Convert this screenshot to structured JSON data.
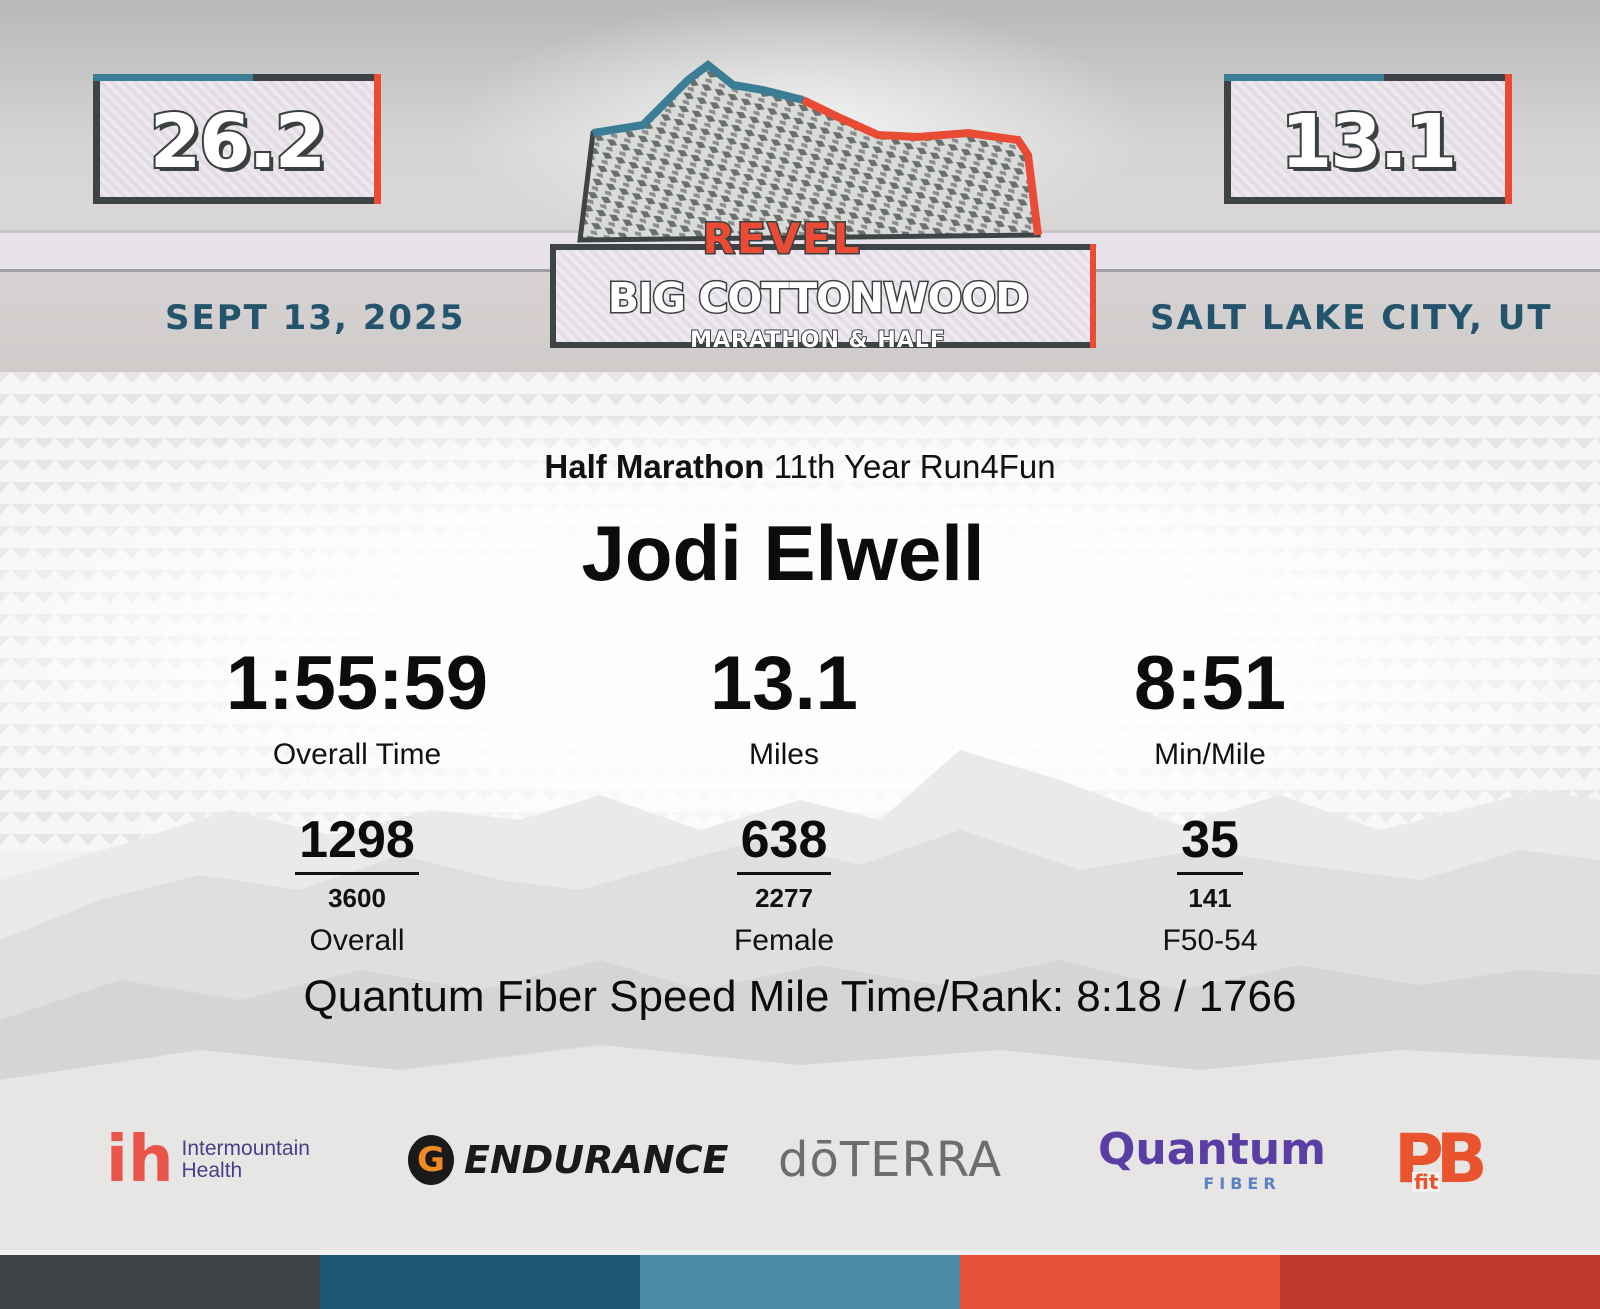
{
  "header": {
    "left_distance": "26.2",
    "right_distance": "13.1",
    "date": "SEPT 13, 2025",
    "location": "SALT LAKE CITY, UT",
    "logo": {
      "brand": "REVEL",
      "name": "BIG COTTONWOOD",
      "subtitle": "MARATHON & HALF"
    }
  },
  "result": {
    "race_type": "Half Marathon",
    "team": "11th Year Run4Fun",
    "runner_name": "Jodi Elwell",
    "stats": [
      {
        "value": "1:55:59",
        "label": "Overall Time"
      },
      {
        "value": "13.1",
        "label": "Miles"
      },
      {
        "value": "8:51",
        "label": "Min/Mile"
      }
    ],
    "ranks": [
      {
        "place": "1298",
        "total": "3600",
        "label": "Overall"
      },
      {
        "place": "638",
        "total": "2277",
        "label": "Female"
      },
      {
        "place": "35",
        "total": "141",
        "label": "F50-54"
      }
    ],
    "speed_mile": "Quantum Fiber Speed Mile Time/Rank: 8:18 / 1766"
  },
  "sponsors": {
    "intermountain": {
      "line1": "Intermountain",
      "line2": "Health"
    },
    "gatorade": {
      "mark": "G",
      "text": "ENDURANCE"
    },
    "doterra": "dōTERRA",
    "quantum": {
      "main": "Quantum",
      "sub": "FIBER"
    },
    "pbfit": {
      "main": "PB",
      "sub": "fit"
    }
  },
  "colors": {
    "accent_blue": "#24546c",
    "accent_red": "#e94b35",
    "bar": [
      "#3e4445",
      "#1c5670",
      "#4a8ba3",
      "#e9523a",
      "#c0392f"
    ]
  }
}
